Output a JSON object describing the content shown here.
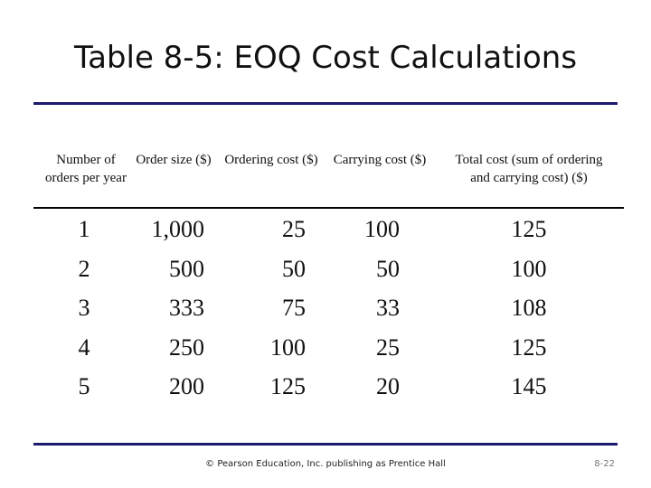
{
  "header": {
    "title": "Table 8-5:  EOQ Cost Calculations"
  },
  "table": {
    "columns": [
      "Number of orders per year",
      "Order size ($)",
      "Ordering cost ($)",
      "Carrying cost ($)",
      "Total cost (sum of ordering and carrying cost) ($)"
    ],
    "rows": [
      [
        "1",
        "1,000",
        "25",
        "100",
        "125"
      ],
      [
        "2",
        "500",
        "50",
        "50",
        "100"
      ],
      [
        "3",
        "333",
        "75",
        "33",
        "108"
      ],
      [
        "4",
        "250",
        "100",
        "25",
        "125"
      ],
      [
        "5",
        "200",
        "125",
        "20",
        "145"
      ]
    ]
  },
  "footer": {
    "credit": "© Pearson Education, Inc. publishing as Prentice Hall",
    "page": "8-22"
  }
}
